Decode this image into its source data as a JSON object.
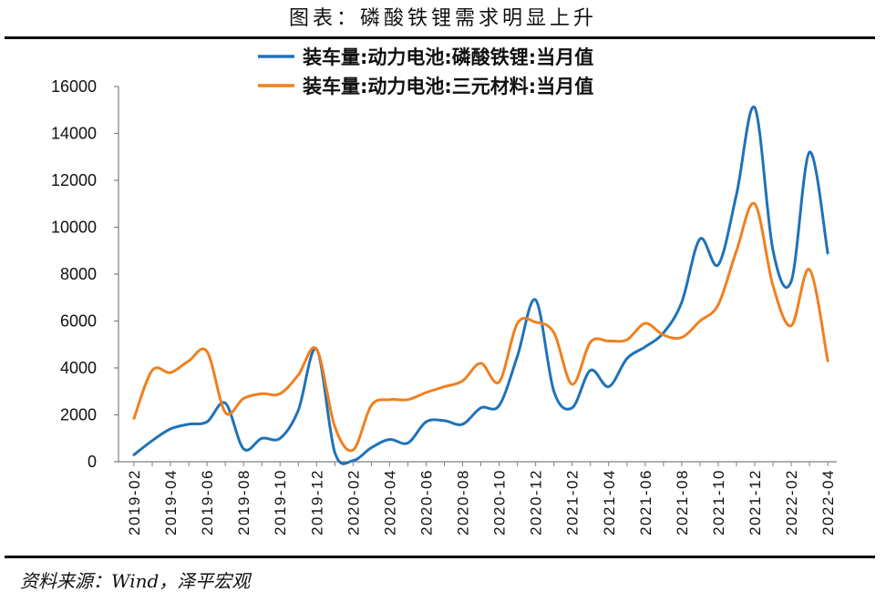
{
  "source": "资料来源：Wind，泽平宏观",
  "chart_data": {
    "type": "line",
    "title": "图表：磷酸铁锂需求明显上升",
    "x": [
      "2019-02",
      "2019-03",
      "2019-04",
      "2019-05",
      "2019-06",
      "2019-07",
      "2019-08",
      "2019-09",
      "2019-10",
      "2019-11",
      "2019-12",
      "2020-01",
      "2020-02",
      "2020-03",
      "2020-04",
      "2020-05",
      "2020-06",
      "2020-07",
      "2020-08",
      "2020-09",
      "2020-10",
      "2020-11",
      "2020-12",
      "2021-01",
      "2021-02",
      "2021-03",
      "2021-04",
      "2021-05",
      "2021-06",
      "2021-07",
      "2021-08",
      "2021-09",
      "2021-10",
      "2021-11",
      "2021-12",
      "2022-01",
      "2022-02",
      "2022-03",
      "2022-04"
    ],
    "xtick_labels": [
      "2019-02",
      "2019-04",
      "2019-06",
      "2019-08",
      "2019-10",
      "2019-12",
      "2020-02",
      "2020-04",
      "2020-06",
      "2020-08",
      "2020-10",
      "2020-12",
      "2021-02",
      "2021-04",
      "2021-06",
      "2021-08",
      "2021-10",
      "2021-12",
      "2022-02",
      "2022-04"
    ],
    "ylim": [
      0,
      16000
    ],
    "yticks": [
      0,
      2000,
      4000,
      6000,
      8000,
      10000,
      12000,
      14000,
      16000
    ],
    "grid": false,
    "legend": "top",
    "smooth": true,
    "series": [
      {
        "name": "装车量:动力电池:磷酸铁锂:当月值",
        "color": "#1f72ba",
        "values": [
          300,
          900,
          1400,
          1600,
          1700,
          2500,
          550,
          1000,
          1000,
          2200,
          4800,
          400,
          50,
          600,
          950,
          800,
          1700,
          1750,
          1600,
          2300,
          2400,
          4500,
          6900,
          3000,
          2300,
          3900,
          3200,
          4400,
          4900,
          5500,
          6800,
          9500,
          8400,
          11400,
          15100,
          9000,
          7700,
          13200,
          8900
        ]
      },
      {
        "name": "装车量:动力电池:三元材料:当月值",
        "color": "#f0801f",
        "values": [
          1850,
          3900,
          3800,
          4300,
          4700,
          2100,
          2700,
          2900,
          2900,
          3700,
          4800,
          1500,
          500,
          2400,
          2650,
          2650,
          2950,
          3200,
          3450,
          4200,
          3400,
          5900,
          5950,
          5500,
          3300,
          5100,
          5150,
          5200,
          5900,
          5400,
          5300,
          6000,
          6700,
          9000,
          11000,
          7500,
          5800,
          8200,
          4300
        ]
      }
    ]
  }
}
